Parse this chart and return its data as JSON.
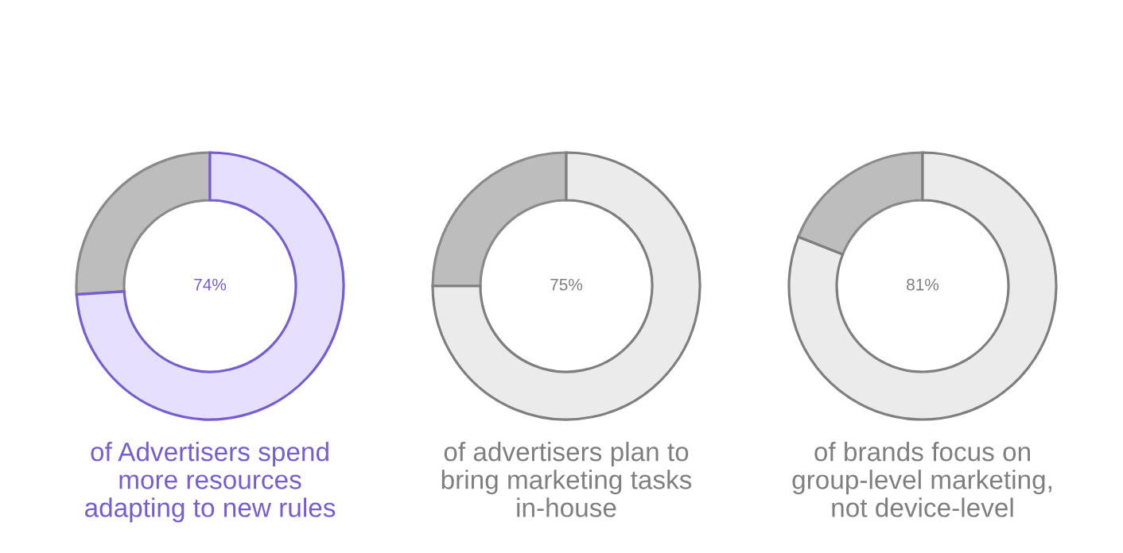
{
  "chart_data": [
    {
      "type": "donut",
      "title": "of Advertisers spend\nmore resources\nadapting to new rules",
      "categories": [
        null,
        null
      ],
      "series": [
        {
          "color": "#775dd0",
          "values": [
            74,
            26
          ]
        }
      ],
      "colors": [
        "#e6e0fd",
        "#bdbdbd"
      ],
      "value_labels": [
        "74%",
        null
      ]
    },
    {
      "type": "donut",
      "title": "of advertisers plan to\nbring marketing tasks\nin-house",
      "categories": [
        null,
        null
      ],
      "series": [
        {
          "color": "#7f7f7f",
          "values": [
            75,
            25
          ]
        }
      ],
      "colors": [
        "#ebebeb",
        "#bdbdbd"
      ],
      "value_labels": [
        "75%",
        null
      ]
    },
    {
      "type": "donut",
      "title": "of brands focus on\ngroup-level marketing,\nnot device-level",
      "categories": [
        null,
        null
      ],
      "series": [
        {
          "color": "#7f7f7f",
          "values": [
            81,
            19
          ]
        }
      ],
      "colors": [
        "#ebebeb",
        "#bdbdbd"
      ],
      "value_labels": [
        "81%",
        null
      ]
    }
  ]
}
